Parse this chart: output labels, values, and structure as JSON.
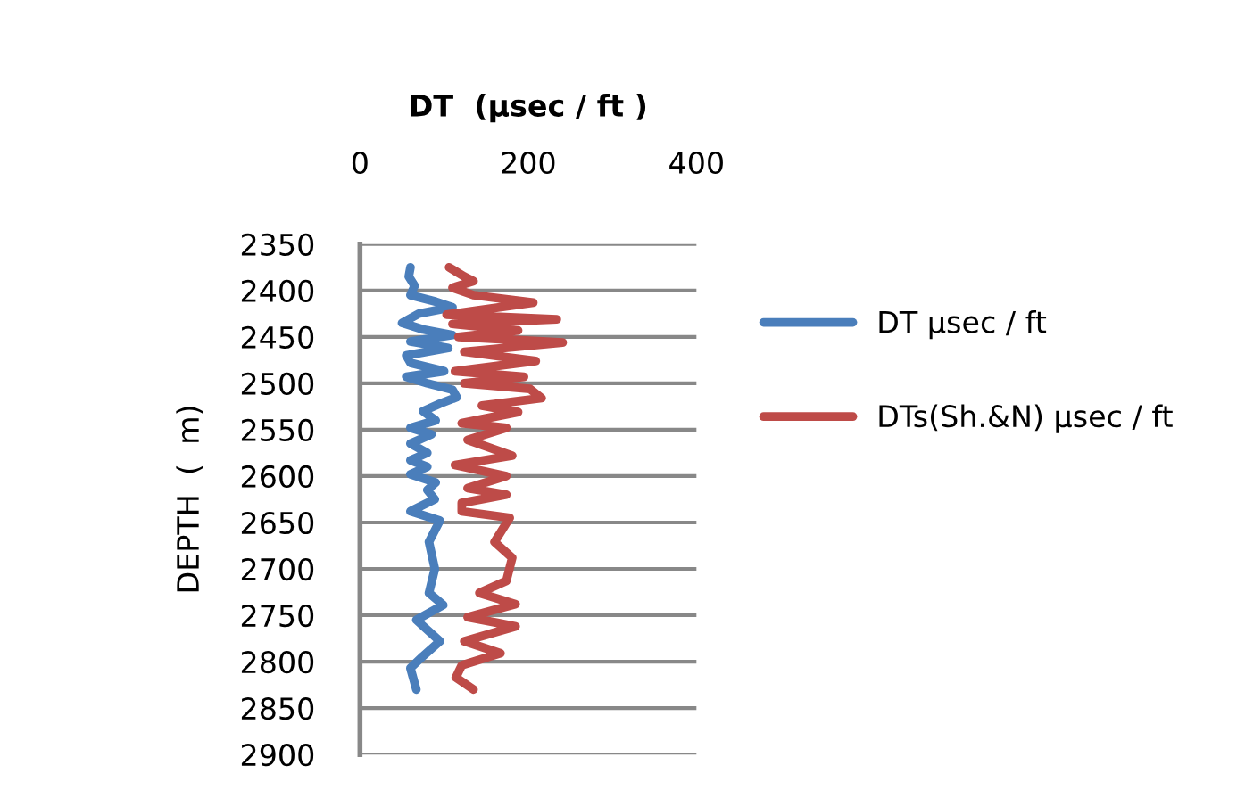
{
  "chart_data": {
    "type": "line",
    "xlabel": "DT  (µsec / ft )",
    "ylabel": "DEPTH  (  m)",
    "xlim": [
      0,
      400
    ],
    "xticks": [
      0,
      200,
      400
    ],
    "ylim": [
      2900,
      2350
    ],
    "yticks": [
      2350,
      2400,
      2450,
      2500,
      2550,
      2600,
      2650,
      2700,
      2750,
      2800,
      2850,
      2900
    ],
    "grid": "y",
    "legend": "right",
    "line_style": "solid",
    "marker": "none",
    "series": [
      {
        "name": "DT µsec / ft",
        "color": "#4a7ebb",
        "x": [
          60,
          58,
          65,
          60,
          90,
          110,
          70,
          50,
          75,
          110,
          60,
          105,
          55,
          60,
          100,
          55,
          80,
          110,
          115,
          95,
          75,
          90,
          60,
          85,
          60,
          80,
          60,
          80,
          60,
          90,
          80,
          89,
          60,
          95,
          82,
          89,
          82,
          99,
          67,
          95,
          75,
          60,
          67
        ],
        "values": [
          2375,
          2385,
          2395,
          2405,
          2412,
          2418,
          2425,
          2435,
          2442,
          2448,
          2455,
          2462,
          2470,
          2478,
          2487,
          2493,
          2500,
          2507,
          2515,
          2522,
          2530,
          2540,
          2548,
          2555,
          2565,
          2575,
          2583,
          2590,
          2598,
          2607,
          2615,
          2625,
          2638,
          2648,
          2671,
          2700,
          2726,
          2739,
          2755,
          2778,
          2794,
          2807,
          2830
        ]
      },
      {
        "name": "DTs(Sh.&N) µsec / ft",
        "color": "#be4b48",
        "x": [
          106,
          124,
          135,
          110,
          135,
          206,
          103,
          234,
          110,
          188,
          117,
          241,
          124,
          209,
          113,
          195,
          124,
          202,
          216,
          145,
          188,
          121,
          174,
          128,
          181,
          113,
          174,
          128,
          174,
          121,
          121,
          178,
          160,
          181,
          174,
          142,
          185,
          128,
          185,
          124,
          167,
          121,
          114,
          135
        ],
        "values": [
          2375,
          2385,
          2390,
          2397,
          2405,
          2413,
          2426,
          2431,
          2436,
          2443,
          2450,
          2456,
          2466,
          2476,
          2487,
          2493,
          2500,
          2506,
          2516,
          2524,
          2531,
          2543,
          2548,
          2561,
          2578,
          2588,
          2600,
          2613,
          2620,
          2629,
          2638,
          2645,
          2671,
          2688,
          2713,
          2726,
          2738,
          2752,
          2762,
          2778,
          2791,
          2804,
          2817,
          2830
        ]
      }
    ]
  }
}
